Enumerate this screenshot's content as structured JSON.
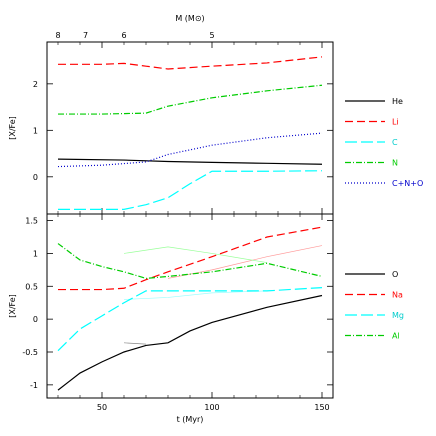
{
  "chart_data": [
    {
      "type": "line",
      "panel": "top",
      "xlabel": "t (Myr)",
      "ylabel": "[X/Fe]",
      "xlim": [
        25,
        155
      ],
      "ylim": [
        -0.8,
        2.9
      ],
      "xticks": [
        50,
        100,
        150
      ],
      "yticks": [
        0,
        1,
        2
      ],
      "top_axis_label": "M (M⊙)",
      "top_axis_ticks": [
        {
          "label": "8",
          "t": 30
        },
        {
          "label": "7",
          "t": 42.5
        },
        {
          "label": "6",
          "t": 60
        },
        {
          "label": "5",
          "t": 100
        }
      ],
      "legend_position": "right",
      "series": [
        {
          "name": "He",
          "color": "#000000",
          "dash": "solid",
          "x": [
            30,
            60,
            80,
            100,
            125,
            150
          ],
          "y": [
            0.38,
            0.36,
            0.33,
            0.31,
            0.29,
            0.27
          ]
        },
        {
          "name": "Li",
          "color": "#ff0000",
          "dash": "8,4",
          "x": [
            30,
            50,
            60,
            70,
            80,
            100,
            125,
            150
          ],
          "y": [
            2.42,
            2.42,
            2.44,
            2.38,
            2.32,
            2.38,
            2.45,
            2.58
          ]
        },
        {
          "name": "C",
          "color": "#00ffff",
          "dash": "12,4",
          "x": [
            30,
            50,
            60,
            70,
            80,
            90,
            100,
            125,
            150
          ],
          "y": [
            -0.7,
            -0.7,
            -0.7,
            -0.6,
            -0.45,
            -0.15,
            0.12,
            0.12,
            0.13
          ]
        },
        {
          "name": "N",
          "color": "#00cc00",
          "dash": "6,2,1,2",
          "x": [
            30,
            50,
            70,
            80,
            100,
            125,
            150
          ],
          "y": [
            1.35,
            1.35,
            1.37,
            1.52,
            1.7,
            1.85,
            1.97
          ]
        },
        {
          "name": "C+N+O",
          "color": "#0000cc",
          "dash": "1,2",
          "x": [
            30,
            50,
            70,
            80,
            100,
            125,
            150
          ],
          "y": [
            0.22,
            0.25,
            0.32,
            0.48,
            0.68,
            0.84,
            0.94
          ]
        }
      ]
    },
    {
      "type": "line",
      "panel": "bottom",
      "xlabel": "t (Myr)",
      "ylabel": "[X/Fe]",
      "xlim": [
        25,
        155
      ],
      "ylim": [
        -1.2,
        1.6
      ],
      "xticks": [
        50,
        100,
        150
      ],
      "yticks": [
        -1,
        -0.5,
        0,
        0.5,
        1,
        1.5
      ],
      "legend_position": "right",
      "series": [
        {
          "name": "O",
          "color": "#000000",
          "dash": "solid",
          "x": [
            30,
            35,
            40,
            50,
            60,
            70,
            80,
            90,
            100,
            125,
            150
          ],
          "y": [
            -1.08,
            -0.95,
            -0.82,
            -0.65,
            -0.5,
            -0.4,
            -0.36,
            -0.18,
            -0.05,
            0.18,
            0.36
          ]
        },
        {
          "name": "Na",
          "color": "#ff0000",
          "dash": "8,4",
          "x": [
            30,
            50,
            60,
            70,
            80,
            100,
            125,
            150
          ],
          "y": [
            0.45,
            0.45,
            0.47,
            0.6,
            0.72,
            0.95,
            1.25,
            1.4
          ]
        },
        {
          "name": "Mg",
          "color": "#00ffff",
          "dash": "12,4",
          "x": [
            30,
            40,
            50,
            60,
            70,
            80,
            100,
            125,
            150
          ],
          "y": [
            -0.48,
            -0.15,
            0.05,
            0.25,
            0.43,
            0.43,
            0.43,
            0.43,
            0.48
          ]
        },
        {
          "name": "Al",
          "color": "#00cc00",
          "dash": "6,2,1,2",
          "x": [
            30,
            40,
            50,
            60,
            70,
            80,
            100,
            125,
            150
          ],
          "y": [
            1.15,
            0.9,
            0.8,
            0.72,
            0.62,
            0.65,
            0.72,
            0.85,
            0.65
          ]
        }
      ],
      "thin_series": [
        {
          "color": "#ff9999",
          "x": [
            80,
            100,
            125,
            150
          ],
          "y": [
            0.62,
            0.75,
            0.95,
            1.12
          ]
        },
        {
          "color": "#99ff99",
          "x": [
            60,
            80,
            100,
            125
          ],
          "y": [
            1.0,
            1.1,
            1.0,
            0.86
          ]
        },
        {
          "color": "#99ffff",
          "x": [
            60,
            80,
            100,
            125
          ],
          "y": [
            0.3,
            0.33,
            0.4,
            0.43
          ]
        },
        {
          "color": "#888888",
          "x": [
            60,
            70
          ],
          "y": [
            -0.36,
            -0.38
          ]
        }
      ]
    }
  ]
}
